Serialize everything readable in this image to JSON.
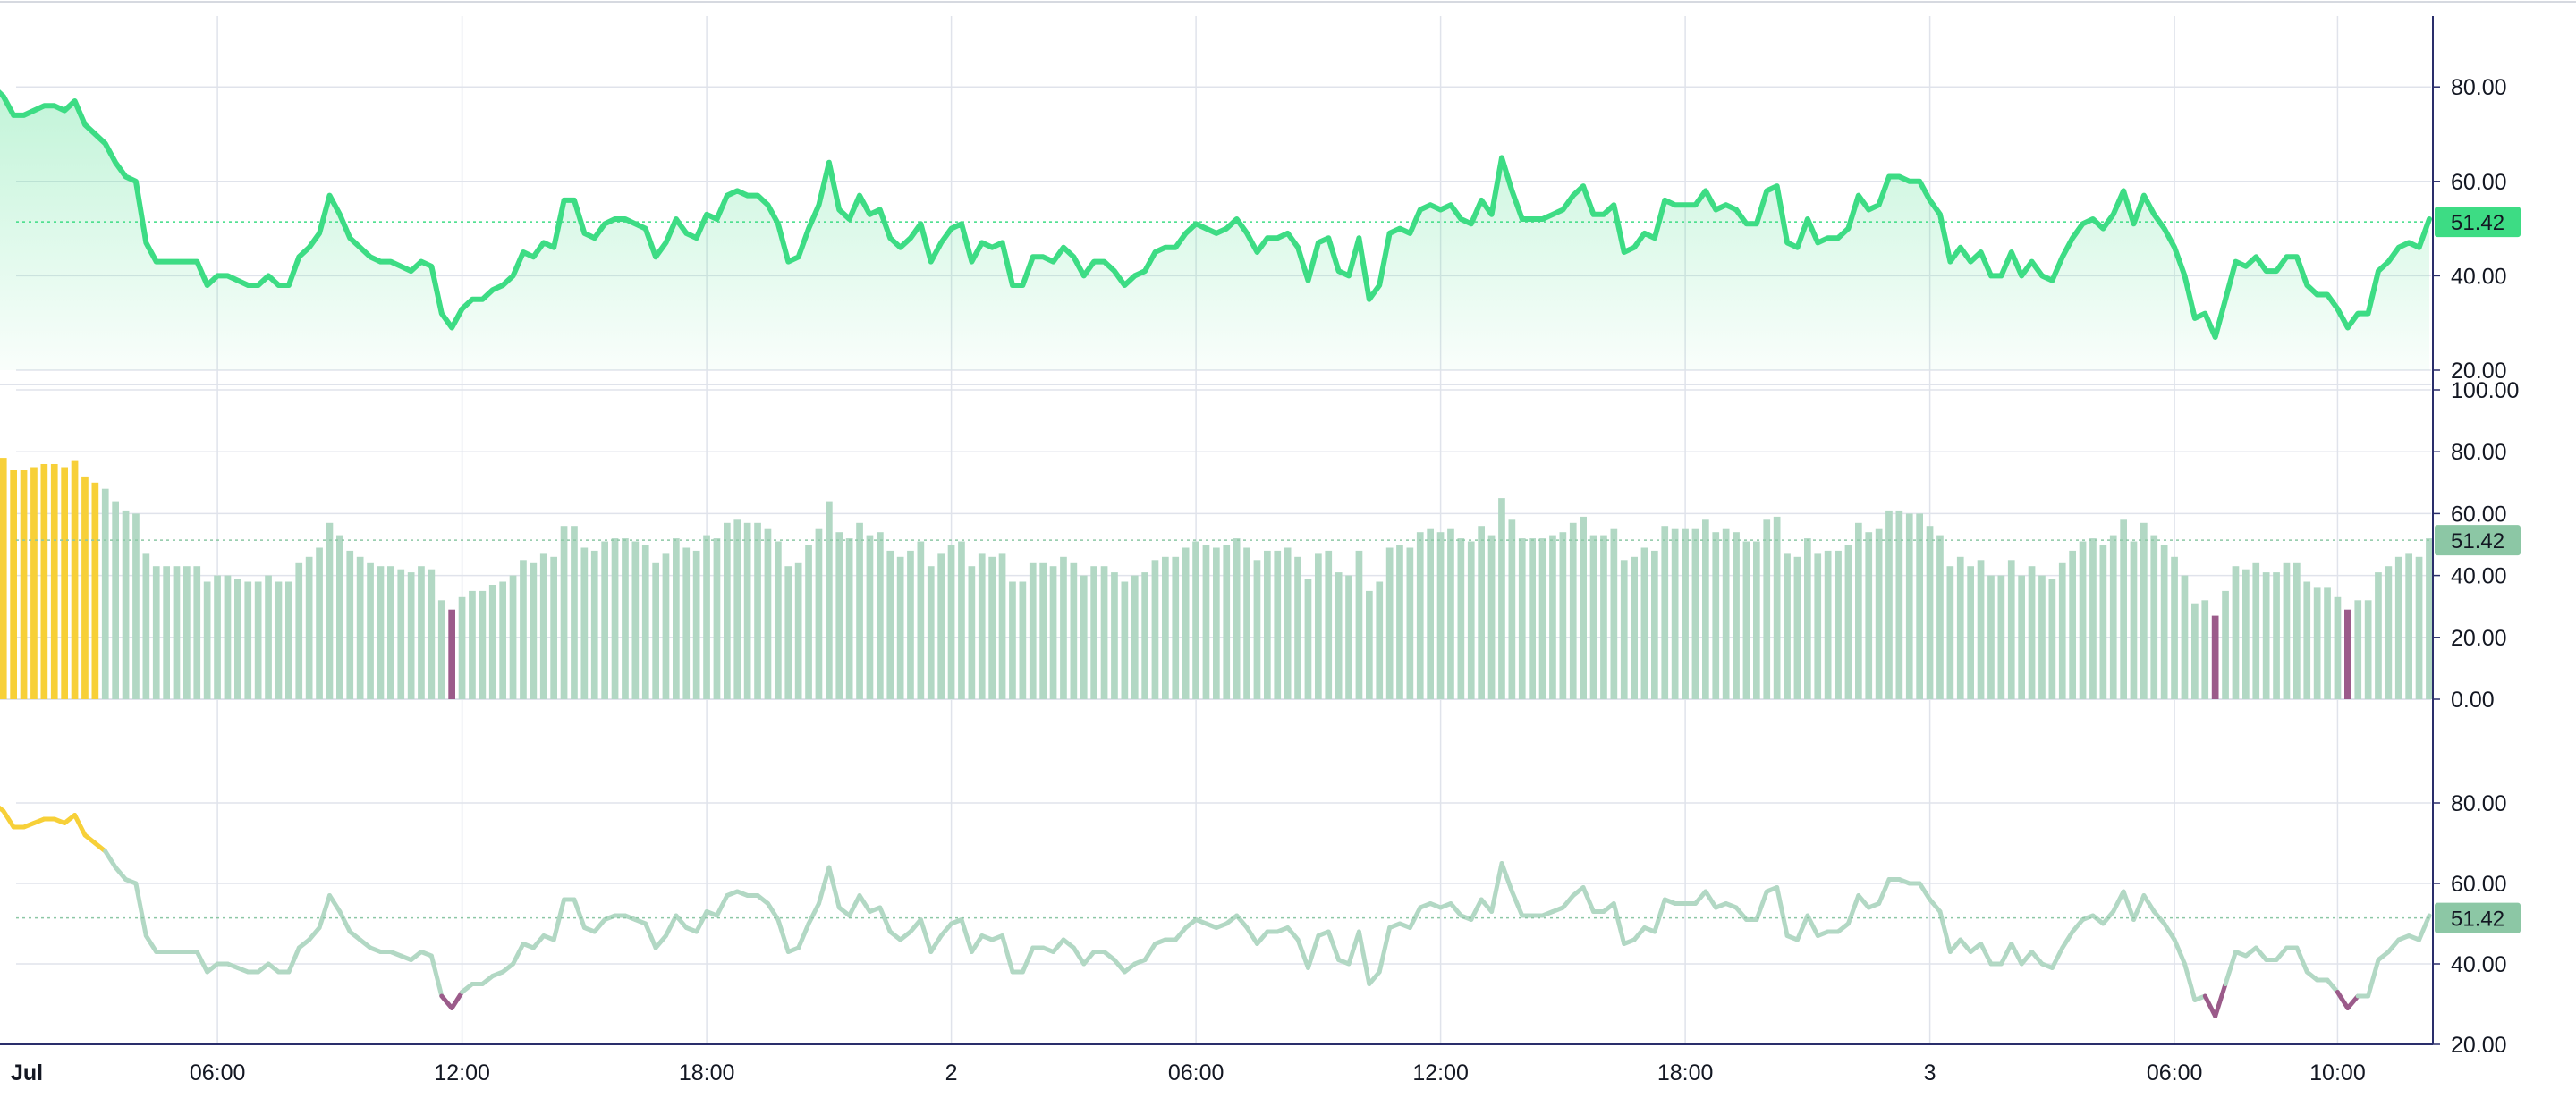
{
  "colors": {
    "line_main": "#3ddc84",
    "area_top": "#3ddc84",
    "bar_default": "#b2d8c4",
    "bar_high": "#f7d038",
    "bar_low": "#9b5b8a",
    "line_soft": "#b2d8c4",
    "price_line": "#3ddc84",
    "badge_main": "#3ddc84",
    "badge_soft": "#8cc7a5",
    "grid": "#e0e3eb",
    "axis_line": "#2a2e6b"
  },
  "last_value_label": "51.42",
  "x_axis": {
    "labels": [
      "Jul",
      "06:00",
      "12:00",
      "18:00",
      "2",
      "06:00",
      "12:00",
      "18:00",
      "3",
      "06:00",
      "10:00"
    ],
    "label_hours": [
      0,
      6,
      12,
      18,
      24,
      30,
      36,
      42,
      48,
      54,
      58
    ]
  },
  "chart_data": [
    {
      "type": "area",
      "panel": "top",
      "y_ticks": [
        "80.00",
        "60.00",
        "40.00",
        "20.00"
      ],
      "y_tick_values": [
        80,
        60,
        40,
        20
      ],
      "ylim": [
        20,
        95
      ],
      "last_value": 51.42,
      "series_ref": "values"
    },
    {
      "type": "bar",
      "panel": "middle",
      "y_ticks": [
        "100.00",
        "80.00",
        "60.00",
        "40.00",
        "20.00",
        "0.00"
      ],
      "y_tick_values": [
        100,
        80,
        60,
        40,
        20,
        0
      ],
      "ylim": [
        0,
        100
      ],
      "overbought": 70,
      "oversold": 30,
      "last_value": 51.42,
      "series_ref": "values"
    },
    {
      "type": "line",
      "panel": "bottom",
      "y_ticks": [
        "80.00",
        "60.00",
        "40.00",
        "20.00"
      ],
      "y_tick_values": [
        80,
        60,
        40,
        20
      ],
      "ylim": [
        20,
        88
      ],
      "overbought": 70,
      "oversold": 30,
      "last_value": 51.42,
      "series_ref": "values"
    }
  ],
  "series": {
    "hours_per_step": 0.25,
    "values": [
      79,
      71,
      80,
      78,
      74,
      74,
      75,
      76,
      76,
      75,
      77,
      72,
      70,
      68,
      64,
      61,
      60,
      47,
      43,
      43,
      43,
      43,
      43,
      38,
      40,
      40,
      39,
      38,
      38,
      40,
      38,
      38,
      44,
      46,
      49,
      57,
      53,
      48,
      46,
      44,
      43,
      43,
      42,
      41,
      43,
      42,
      32,
      29,
      33,
      35,
      35,
      37,
      38,
      40,
      45,
      44,
      47,
      46,
      56,
      56,
      49,
      48,
      51,
      52,
      52,
      51,
      50,
      44,
      47,
      52,
      49,
      48,
      53,
      52,
      57,
      58,
      57,
      57,
      55,
      51,
      43,
      44,
      50,
      55,
      64,
      54,
      52,
      57,
      53,
      54,
      48,
      46,
      48,
      51,
      43,
      47,
      50,
      51,
      43,
      47,
      46,
      47,
      38,
      38,
      44,
      44,
      43,
      46,
      44,
      40,
      43,
      43,
      41,
      38,
      40,
      41,
      45,
      46,
      46,
      49,
      51,
      50,
      49,
      50,
      52,
      49,
      45,
      48,
      48,
      49,
      46,
      39,
      47,
      48,
      41,
      40,
      48,
      35,
      38,
      49,
      50,
      49,
      54,
      55,
      54,
      55,
      52,
      51,
      56,
      53,
      65,
      58,
      52,
      52,
      52,
      53,
      54,
      57,
      59,
      53,
      53,
      55,
      45,
      46,
      49,
      48,
      56,
      55,
      55,
      55,
      58,
      54,
      55,
      54,
      51,
      51,
      58,
      59,
      47,
      46,
      52,
      47,
      48,
      48,
      50,
      57,
      54,
      55,
      61,
      61,
      60,
      60,
      56,
      53,
      43,
      46,
      43,
      45,
      40,
      40,
      45,
      40,
      43,
      40,
      39,
      44,
      48,
      51,
      52,
      50,
      53,
      58,
      51,
      57,
      53,
      50,
      46,
      40,
      31,
      32,
      27,
      35,
      43,
      42,
      44,
      41,
      41,
      44,
      44,
      38,
      36,
      36,
      33,
      29,
      32,
      32,
      41,
      43,
      46,
      47,
      46,
      52
    ]
  }
}
